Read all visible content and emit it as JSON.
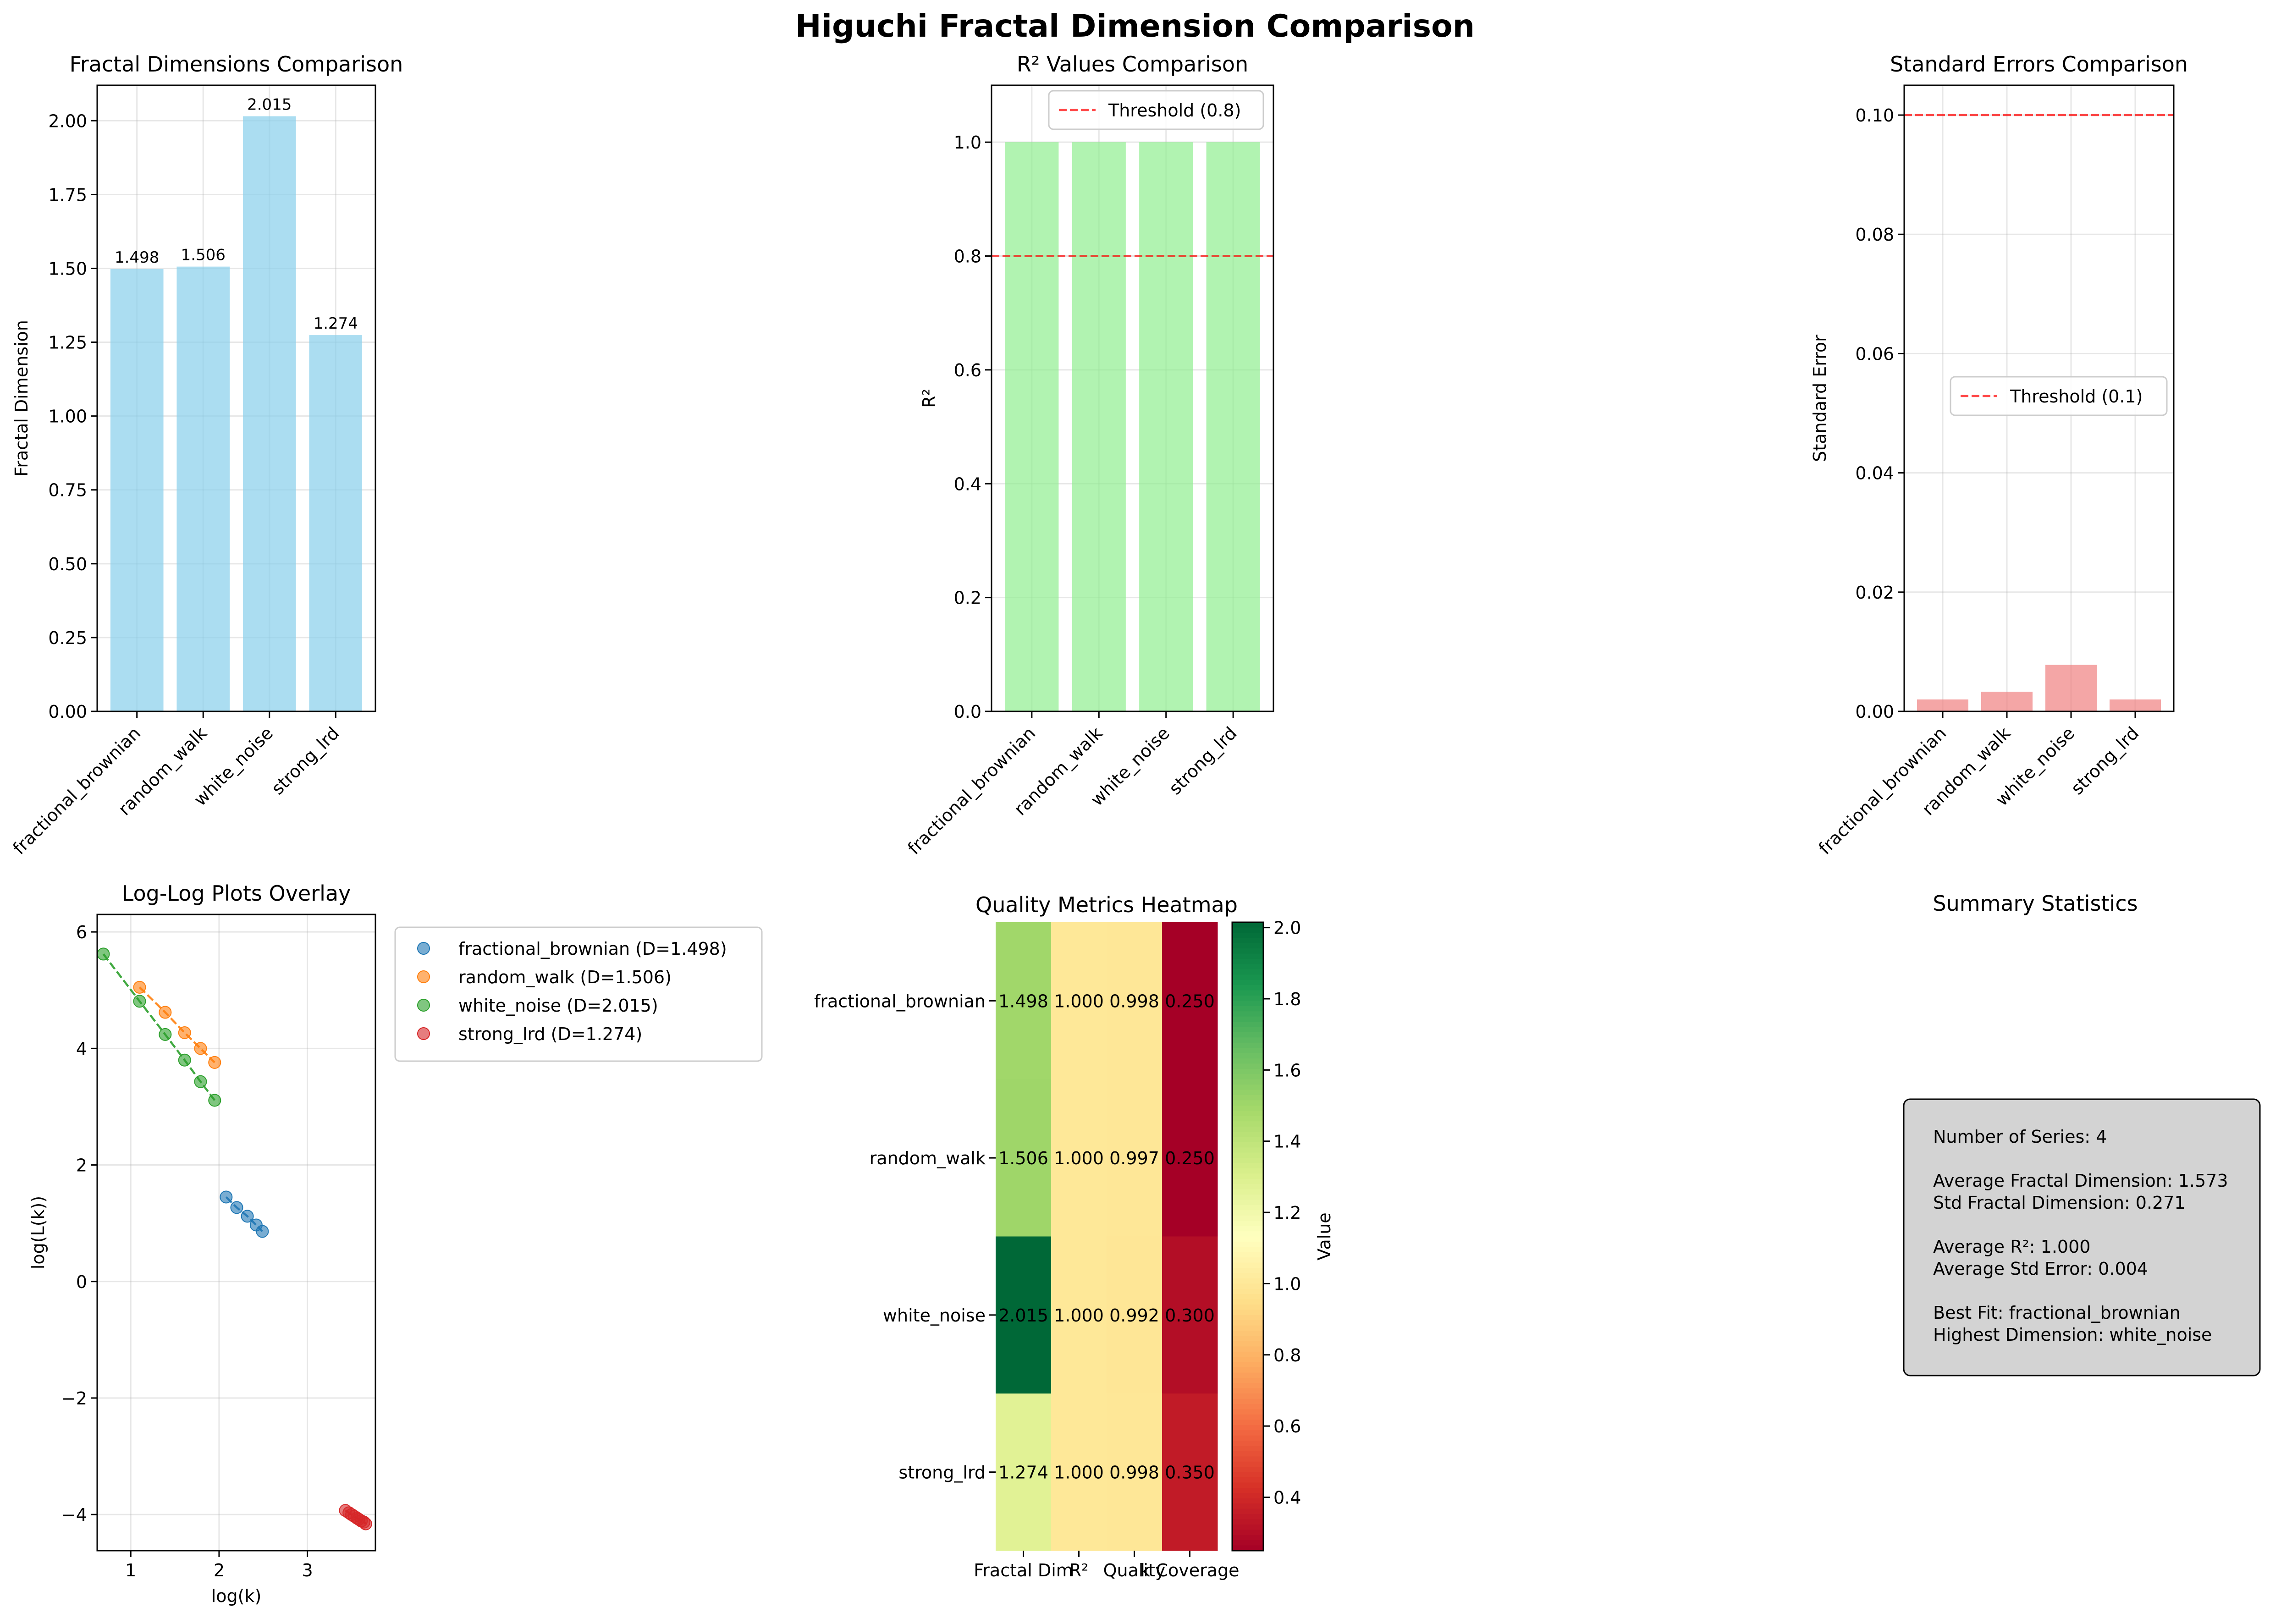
{
  "suptitle": "Higuchi Fractal Dimension Comparison",
  "categories": [
    "fractional_brownian",
    "random_walk",
    "white_noise",
    "strong_lrd"
  ],
  "colors": {
    "fd_bar": "#87ceeb",
    "r2_bar": "#90ee90",
    "se_bar": "#f08080",
    "threshold": "#ff0000",
    "summary_box": "#d3d3d3"
  },
  "chart_data": [
    {
      "type": "bar",
      "title": "Fractal Dimensions Comparison",
      "categories": [
        "fractional_brownian",
        "random_walk",
        "white_noise",
        "strong_lrd"
      ],
      "values": [
        1.498,
        1.506,
        2.015,
        1.274
      ],
      "value_labels": [
        "1.498",
        "1.506",
        "2.015",
        "1.274"
      ],
      "xlabel": "",
      "ylabel": "Fractal Dimension",
      "ylim": [
        0,
        2.12
      ],
      "yticks": [
        "0.00",
        "0.25",
        "0.50",
        "0.75",
        "1.00",
        "1.25",
        "1.50",
        "1.75",
        "2.00"
      ],
      "grid": true
    },
    {
      "type": "bar",
      "title": "R² Values Comparison",
      "categories": [
        "fractional_brownian",
        "random_walk",
        "white_noise",
        "strong_lrd"
      ],
      "values": [
        1.0,
        1.0,
        1.0,
        1.0
      ],
      "xlabel": "",
      "ylabel": "R²",
      "ylim": [
        0,
        1.1
      ],
      "yticks": [
        "0.0",
        "0.2",
        "0.4",
        "0.6",
        "0.8",
        "1.0"
      ],
      "threshold": {
        "value": 0.8,
        "label": "Threshold (0.8)"
      },
      "legend": "top-right",
      "grid": true
    },
    {
      "type": "bar",
      "title": "Standard Errors Comparison",
      "categories": [
        "fractional_brownian",
        "random_walk",
        "white_noise",
        "strong_lrd"
      ],
      "values": [
        0.002,
        0.0033,
        0.0078,
        0.002
      ],
      "xlabel": "",
      "ylabel": "Standard Error",
      "ylim": [
        0,
        0.105
      ],
      "yticks": [
        "0.00",
        "0.02",
        "0.04",
        "0.06",
        "0.08",
        "0.10"
      ],
      "threshold": {
        "value": 0.1,
        "label": "Threshold (0.1)"
      },
      "legend": "center-right",
      "grid": true
    },
    {
      "type": "scatter",
      "title": "Log-Log Plots Overlay",
      "xlabel": "log(k)",
      "ylabel": "log(L(k))",
      "xlim": [
        0.62,
        3.77
      ],
      "ylim": [
        -4.62,
        6.3
      ],
      "xticks": [
        "1",
        "2",
        "3"
      ],
      "yticks": [
        "−4",
        "−2",
        "0",
        "2",
        "4",
        "6"
      ],
      "legend": "outside-right",
      "grid": true,
      "series": [
        {
          "name": "fractional_brownian (D=1.498)",
          "color": "#1f77b4",
          "x": [
            2.08,
            2.2,
            2.32,
            2.42,
            2.49
          ],
          "y": [
            1.45,
            1.27,
            1.12,
            0.97,
            0.86
          ]
        },
        {
          "name": "random_walk (D=1.506)",
          "color": "#ff7f0e",
          "x": [
            1.1,
            1.39,
            1.61,
            1.79,
            1.95
          ],
          "y": [
            5.05,
            4.62,
            4.27,
            4.0,
            3.76
          ]
        },
        {
          "name": "white_noise (D=2.015)",
          "color": "#2ca02c",
          "x": [
            0.69,
            1.1,
            1.39,
            1.61,
            1.79,
            1.95
          ],
          "y": [
            5.62,
            4.81,
            4.24,
            3.8,
            3.43,
            3.11
          ]
        },
        {
          "name": "strong_lrd (D=1.274)",
          "color": "#d62728",
          "x": [
            3.43,
            3.47,
            3.5,
            3.53,
            3.56,
            3.58,
            3.61,
            3.64,
            3.66
          ],
          "y": [
            -3.93,
            -3.97,
            -4.0,
            -4.03,
            -4.06,
            -4.08,
            -4.11,
            -4.13,
            -4.16
          ]
        }
      ]
    },
    {
      "type": "heatmap",
      "title": "Quality Metrics Heatmap",
      "rows": [
        "fractional_brownian",
        "random_walk",
        "white_noise",
        "strong_lrd"
      ],
      "columns": [
        "Fractal Dim",
        "R²",
        "Quality",
        "k Coverage"
      ],
      "values": [
        [
          1.498,
          1.0,
          0.998,
          0.25
        ],
        [
          1.506,
          1.0,
          0.997,
          0.25
        ],
        [
          2.015,
          1.0,
          0.992,
          0.3
        ],
        [
          1.274,
          1.0,
          0.998,
          0.35
        ]
      ],
      "cell_labels": [
        [
          "1.498",
          "1.000",
          "0.998",
          "0.250"
        ],
        [
          "1.506",
          "1.000",
          "0.997",
          "0.250"
        ],
        [
          "2.015",
          "1.000",
          "0.992",
          "0.300"
        ],
        [
          "1.274",
          "1.000",
          "0.998",
          "0.350"
        ]
      ],
      "colormap": "RdYlGn",
      "vmin": 0.25,
      "vmax": 2.015,
      "colorbar_label": "Value",
      "colorbar_ticks": [
        "0.4",
        "0.6",
        "0.8",
        "1.0",
        "1.2",
        "1.4",
        "1.6",
        "1.8",
        "2.0"
      ]
    }
  ],
  "summary": {
    "title": "Summary Statistics",
    "lines": [
      "Number of Series: 4",
      "",
      "Average Fractal Dimension: 1.573",
      "Std Fractal Dimension: 0.271",
      "",
      "Average R²: 1.000",
      "Average Std Error: 0.004",
      "",
      "Best Fit: fractional_brownian",
      "Highest Dimension: white_noise"
    ]
  }
}
